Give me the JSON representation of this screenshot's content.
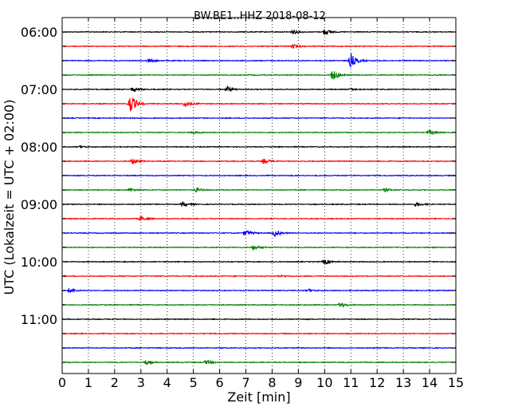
{
  "chart_data": {
    "type": "line",
    "subtype": "dayplot",
    "title": "BW.BE1..HHZ 2018-08-12",
    "xlabel": "Zeit  [min]",
    "ylabel": "UTC (Lokalzeit = UTC + 02:00)",
    "xlim": [
      0,
      15
    ],
    "x_ticks": [
      "0",
      "1",
      "2",
      "3",
      "4",
      "5",
      "6",
      "7",
      "8",
      "9",
      "10",
      "11",
      "12",
      "13",
      "14",
      "15"
    ],
    "y_ticks": [
      "06:00",
      "07:00",
      "08:00",
      "09:00",
      "10:00",
      "11:00"
    ],
    "grid": "vertical dotted",
    "row_interval_minutes": 15,
    "colors": [
      "#000000",
      "#ff0000",
      "#0000ff",
      "#008000"
    ],
    "rows": [
      {
        "start": "06:00",
        "color": "#000000",
        "events": [
          {
            "t": 8.8,
            "amp": 0.25
          },
          {
            "t": 10.0,
            "amp": 0.4
          }
        ]
      },
      {
        "start": "06:15",
        "color": "#ff0000",
        "events": [
          {
            "t": 8.8,
            "amp": 0.25
          }
        ]
      },
      {
        "start": "06:30",
        "color": "#0000ff",
        "events": [
          {
            "t": 3.3,
            "amp": 0.25
          },
          {
            "t": 11.0,
            "amp": 0.9
          }
        ]
      },
      {
        "start": "06:45",
        "color": "#008000",
        "events": [
          {
            "t": 10.3,
            "amp": 0.7
          }
        ]
      },
      {
        "start": "07:00",
        "color": "#000000",
        "events": [
          {
            "t": 2.7,
            "amp": 0.3
          },
          {
            "t": 6.3,
            "amp": 0.3
          },
          {
            "t": 11.0,
            "amp": 0.15
          }
        ]
      },
      {
        "start": "07:15",
        "color": "#ff0000",
        "events": [
          {
            "t": 2.6,
            "amp": 1.2
          },
          {
            "t": 4.7,
            "amp": 0.4
          }
        ]
      },
      {
        "start": "07:30",
        "color": "#0000ff",
        "events": []
      },
      {
        "start": "07:45",
        "color": "#008000",
        "events": [
          {
            "t": 5.0,
            "amp": 0.15
          },
          {
            "t": 14.0,
            "amp": 0.3
          }
        ]
      },
      {
        "start": "08:00",
        "color": "#000000",
        "events": [
          {
            "t": 0.7,
            "amp": 0.12
          }
        ]
      },
      {
        "start": "08:15",
        "color": "#ff0000",
        "events": [
          {
            "t": 2.7,
            "amp": 0.35
          },
          {
            "t": 7.7,
            "amp": 0.3
          }
        ]
      },
      {
        "start": "08:30",
        "color": "#0000ff",
        "events": []
      },
      {
        "start": "08:45",
        "color": "#008000",
        "events": [
          {
            "t": 2.6,
            "amp": 0.2
          },
          {
            "t": 5.1,
            "amp": 0.25
          },
          {
            "t": 12.3,
            "amp": 0.2
          }
        ]
      },
      {
        "start": "09:00",
        "color": "#000000",
        "events": [
          {
            "t": 4.6,
            "amp": 0.3
          },
          {
            "t": 13.5,
            "amp": 0.25
          }
        ]
      },
      {
        "start": "09:15",
        "color": "#ff0000",
        "events": [
          {
            "t": 3.0,
            "amp": 0.3
          }
        ]
      },
      {
        "start": "09:30",
        "color": "#0000ff",
        "events": [
          {
            "t": 7.0,
            "amp": 0.4
          },
          {
            "t": 8.1,
            "amp": 0.4
          }
        ]
      },
      {
        "start": "09:45",
        "color": "#008000",
        "events": [
          {
            "t": 7.3,
            "amp": 0.35
          }
        ]
      },
      {
        "start": "10:00",
        "color": "#000000",
        "events": [
          {
            "t": 10.0,
            "amp": 0.35
          }
        ]
      },
      {
        "start": "10:15",
        "color": "#ff0000",
        "events": [
          {
            "t": 8.3,
            "amp": 0.12
          }
        ]
      },
      {
        "start": "10:30",
        "color": "#0000ff",
        "events": [
          {
            "t": 0.3,
            "amp": 0.25
          },
          {
            "t": 9.4,
            "amp": 0.15
          }
        ]
      },
      {
        "start": "10:45",
        "color": "#008000",
        "events": [
          {
            "t": 10.6,
            "amp": 0.3
          }
        ]
      },
      {
        "start": "11:00",
        "color": "#000000",
        "events": []
      },
      {
        "start": "11:15",
        "color": "#ff0000",
        "events": []
      },
      {
        "start": "11:30",
        "color": "#0000ff",
        "events": []
      },
      {
        "start": "11:45",
        "color": "#008000",
        "events": [
          {
            "t": 3.2,
            "amp": 0.25
          },
          {
            "t": 5.5,
            "amp": 0.3
          }
        ]
      }
    ]
  }
}
